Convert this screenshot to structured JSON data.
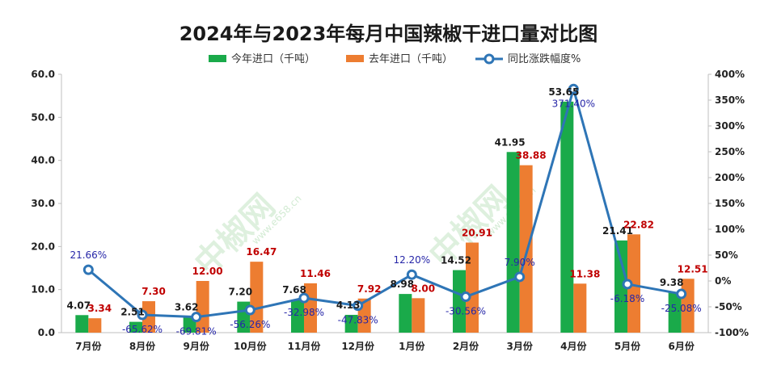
{
  "chart_data": {
    "type": "bar",
    "title": "2024年与2023年每月中国辣椒干进口量对比图",
    "categories": [
      "7月份",
      "8月份",
      "9月份",
      "10月份",
      "11月份",
      "12月份",
      "1月份",
      "2月份",
      "3月份",
      "4月份",
      "5月份",
      "6月份"
    ],
    "series": [
      {
        "name": "今年进口（千吨）",
        "kind": "bar",
        "axis": "left",
        "color": "#1aaa4a",
        "values": [
          4.07,
          2.51,
          3.62,
          7.2,
          7.68,
          4.13,
          8.98,
          14.52,
          41.95,
          53.65,
          21.41,
          9.38
        ],
        "labels": [
          "4.07",
          "2.51",
          "3.62",
          "7.20",
          "7.68",
          "4.13",
          "8.98",
          "14.52",
          "41.95",
          "53.65",
          "21.41",
          "9.38"
        ]
      },
      {
        "name": "去年进口（千吨）",
        "kind": "bar",
        "axis": "left",
        "color": "#ed7d31",
        "values": [
          3.34,
          7.3,
          12.0,
          16.47,
          11.46,
          7.92,
          8.0,
          20.91,
          38.88,
          11.38,
          22.82,
          12.51
        ],
        "labels": [
          "3.34",
          "7.30",
          "12.00",
          "16.47",
          "11.46",
          "7.92",
          "8.00",
          "20.91",
          "38.88",
          "11.38",
          "22.82",
          "12.51"
        ]
      },
      {
        "name": "同比涨跌幅度%",
        "kind": "line",
        "axis": "right",
        "color": "#2e75b6",
        "values": [
          21.66,
          -65.62,
          -69.81,
          -56.26,
          -32.98,
          -47.83,
          12.2,
          -30.56,
          7.9,
          371.4,
          -6.18,
          -25.08
        ],
        "labels": [
          "21.66%",
          "-65.62%",
          "-69.81%",
          "-56.26%",
          "-32.98%",
          "-47.83%",
          "12.20%",
          "-30.56%",
          "7.90%",
          "371.40%",
          "-6.18%",
          "-25.08%"
        ]
      }
    ],
    "y_left": {
      "range": [
        0,
        60
      ],
      "ticks": [
        "0.0",
        "10.0",
        "20.0",
        "30.0",
        "40.0",
        "50.0",
        "60.0"
      ]
    },
    "y_right": {
      "range": [
        -100,
        400
      ],
      "ticks": [
        "-100%",
        "-50%",
        "0%",
        "50%",
        "100%",
        "150%",
        "200%",
        "250%",
        "300%",
        "350%",
        "400%"
      ]
    },
    "legend": {
      "position": "top"
    },
    "grid": false,
    "watermark": {
      "text": "中椒网",
      "subtext": "www.e658.cn"
    }
  }
}
